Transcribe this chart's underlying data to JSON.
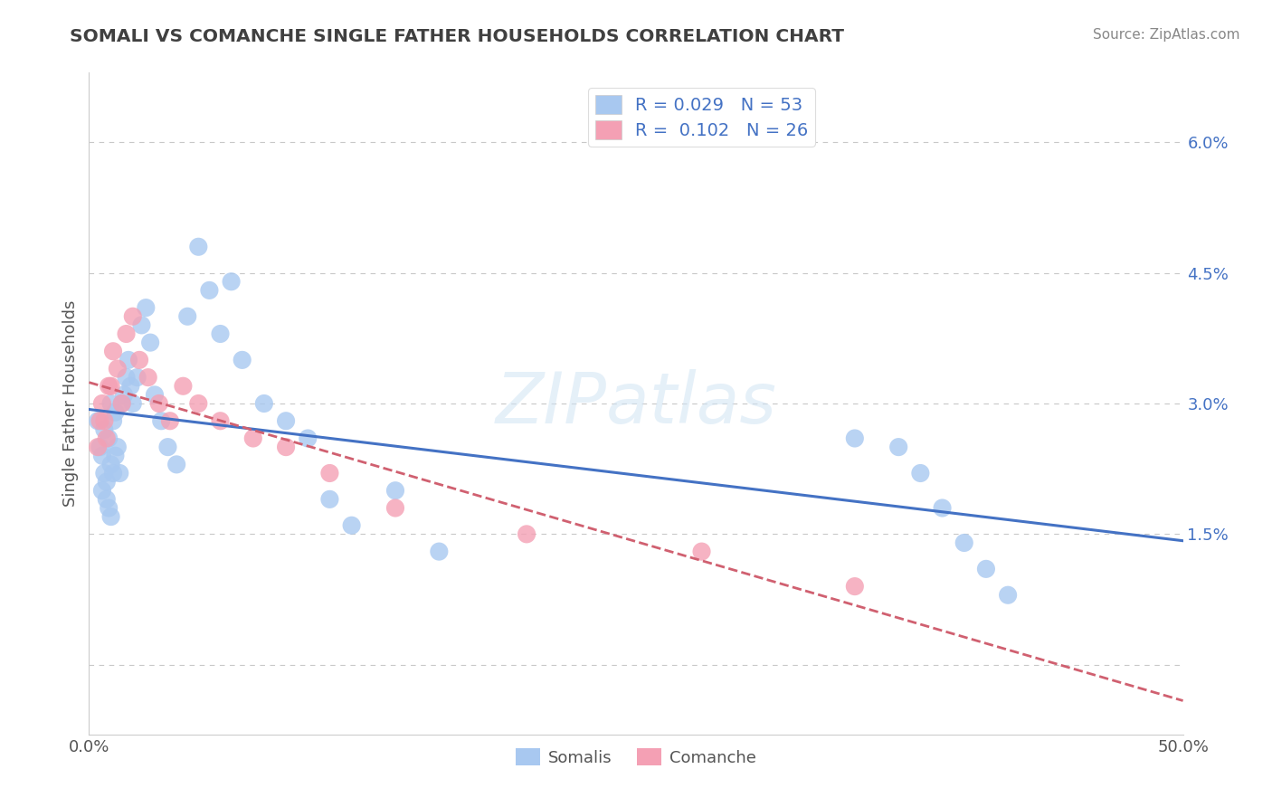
{
  "title": "SOMALI VS COMANCHE SINGLE FATHER HOUSEHOLDS CORRELATION CHART",
  "source": "Source: ZipAtlas.com",
  "ylabel": "Single Father Households",
  "somali_R": 0.029,
  "somali_N": 53,
  "comanche_R": 0.102,
  "comanche_N": 26,
  "somali_color": "#a8c8f0",
  "comanche_color": "#f4a0b4",
  "somali_line_color": "#4472C4",
  "comanche_line_color": "#d06070",
  "background_color": "#ffffff",
  "grid_color": "#c8c8c8",
  "legend_text_color": "#4472C4",
  "title_color": "#404040",
  "watermark": "ZIPatlas",
  "xlim": [
    0.0,
    0.5
  ],
  "ylim_low": -0.008,
  "ylim_high": 0.068,
  "yticks": [
    0.0,
    0.015,
    0.03,
    0.045,
    0.06
  ],
  "ytick_labels": [
    "",
    "1.5%",
    "3.0%",
    "4.5%",
    "6.0%"
  ],
  "somali_x": [
    0.004,
    0.005,
    0.006,
    0.006,
    0.007,
    0.007,
    0.008,
    0.008,
    0.009,
    0.009,
    0.01,
    0.01,
    0.01,
    0.011,
    0.011,
    0.012,
    0.012,
    0.013,
    0.014,
    0.015,
    0.016,
    0.017,
    0.018,
    0.019,
    0.02,
    0.022,
    0.024,
    0.026,
    0.028,
    0.03,
    0.033,
    0.036,
    0.04,
    0.045,
    0.05,
    0.055,
    0.06,
    0.065,
    0.07,
    0.08,
    0.09,
    0.1,
    0.11,
    0.12,
    0.14,
    0.16,
    0.35,
    0.37,
    0.38,
    0.39,
    0.4,
    0.41,
    0.42
  ],
  "somali_y": [
    0.028,
    0.025,
    0.024,
    0.02,
    0.027,
    0.022,
    0.021,
    0.019,
    0.026,
    0.018,
    0.03,
    0.023,
    0.017,
    0.028,
    0.022,
    0.029,
    0.024,
    0.025,
    0.022,
    0.03,
    0.031,
    0.033,
    0.035,
    0.032,
    0.03,
    0.033,
    0.039,
    0.041,
    0.037,
    0.031,
    0.028,
    0.025,
    0.023,
    0.04,
    0.048,
    0.043,
    0.038,
    0.044,
    0.035,
    0.03,
    0.028,
    0.026,
    0.019,
    0.016,
    0.02,
    0.013,
    0.026,
    0.025,
    0.022,
    0.018,
    0.014,
    0.011,
    0.008
  ],
  "comanche_x": [
    0.004,
    0.005,
    0.006,
    0.007,
    0.008,
    0.009,
    0.01,
    0.011,
    0.013,
    0.015,
    0.017,
    0.02,
    0.023,
    0.027,
    0.032,
    0.037,
    0.043,
    0.05,
    0.06,
    0.075,
    0.09,
    0.11,
    0.14,
    0.2,
    0.28,
    0.35
  ],
  "comanche_y": [
    0.025,
    0.028,
    0.03,
    0.028,
    0.026,
    0.032,
    0.032,
    0.036,
    0.034,
    0.03,
    0.038,
    0.04,
    0.035,
    0.033,
    0.03,
    0.028,
    0.032,
    0.03,
    0.028,
    0.026,
    0.025,
    0.022,
    0.018,
    0.015,
    0.013,
    0.009
  ]
}
